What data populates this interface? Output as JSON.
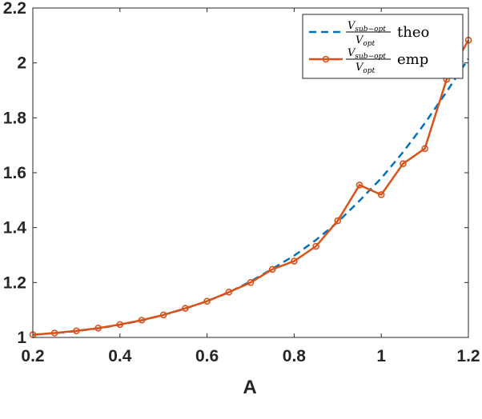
{
  "chart_data": {
    "type": "line",
    "xlabel": "A",
    "ylabel": "",
    "title": "",
    "xlim": [
      0.2,
      1.2
    ],
    "ylim": [
      1.0,
      2.2
    ],
    "x_ticks": [
      "0.2",
      "0.4",
      "0.6",
      "0.8",
      "1",
      "1.2"
    ],
    "y_ticks": [
      "1",
      "1.2",
      "1.4",
      "1.6",
      "1.8",
      "2",
      "2.2"
    ],
    "grid": false,
    "legend_position": "top-right",
    "legend": {
      "ratio_numerator": "V",
      "ratio_numerator_sub": "sub−opt",
      "ratio_denominator": "V",
      "ratio_denominator_sub": "opt"
    },
    "series": [
      {
        "name": "theo",
        "style": "dashed",
        "color": "#0072BD",
        "x": [
          0.2,
          0.25,
          0.3,
          0.35,
          0.4,
          0.45,
          0.5,
          0.55,
          0.6,
          0.65,
          0.7,
          0.75,
          0.8,
          0.85,
          0.9,
          0.95,
          1.0,
          1.05,
          1.1,
          1.15,
          1.2
        ],
        "y": [
          1.01,
          1.016,
          1.023,
          1.033,
          1.046,
          1.062,
          1.082,
          1.105,
          1.132,
          1.164,
          1.204,
          1.25,
          1.298,
          1.355,
          1.42,
          1.498,
          1.58,
          1.675,
          1.78,
          1.895,
          2.015
        ]
      },
      {
        "name": "emp",
        "style": "solid-circle",
        "color": "#D95319",
        "x": [
          0.2,
          0.25,
          0.3,
          0.35,
          0.4,
          0.45,
          0.5,
          0.55,
          0.6,
          0.65,
          0.7,
          0.75,
          0.8,
          0.85,
          0.9,
          0.95,
          1.0,
          1.05,
          1.1,
          1.15,
          1.2
        ],
        "y": [
          1.01,
          1.016,
          1.024,
          1.034,
          1.047,
          1.063,
          1.082,
          1.106,
          1.132,
          1.165,
          1.2,
          1.248,
          1.278,
          1.332,
          1.425,
          1.555,
          1.52,
          1.633,
          1.688,
          1.94,
          2.083
        ]
      }
    ]
  }
}
